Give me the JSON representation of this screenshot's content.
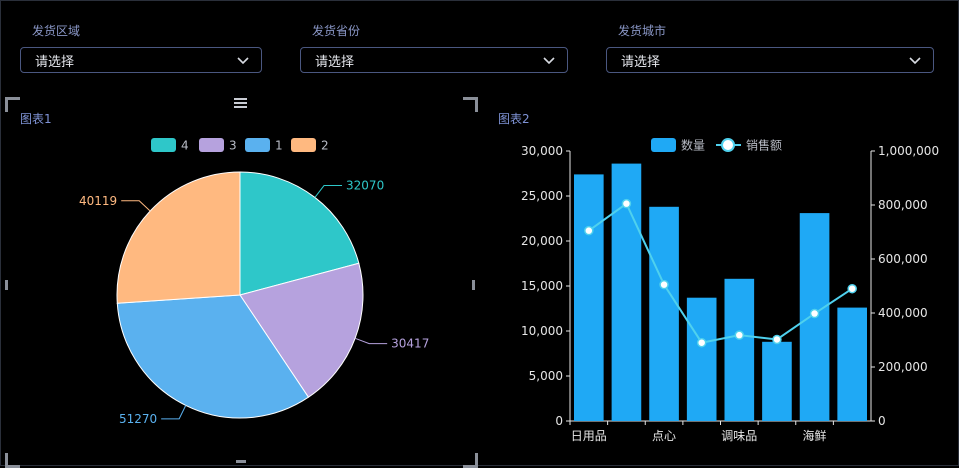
{
  "filters": [
    {
      "label": "发货区域",
      "value": "请选择"
    },
    {
      "label": "发货省份",
      "value": "请选择"
    },
    {
      "label": "发货城市",
      "value": "请选择"
    }
  ],
  "icons": {
    "dropdown": "chevron-down-icon",
    "menu": "menu-icon"
  },
  "chart1": {
    "title": "图表1"
  },
  "chart2": {
    "title": "图表2"
  },
  "chart_data": [
    {
      "type": "pie",
      "legend_position": "top",
      "labels": [
        "4",
        "3",
        "1",
        "2"
      ],
      "values": [
        32070,
        30417,
        51270,
        40119
      ],
      "colors": [
        "#2ec7c9",
        "#b6a2de",
        "#5ab1ef",
        "#ffb980"
      ]
    },
    {
      "type": "bar",
      "legend_position": "top",
      "categories": [
        "日用品",
        "",
        "点心",
        "",
        "调味品",
        "",
        "海鲜",
        ""
      ],
      "series": [
        {
          "name": "数量",
          "type": "bar",
          "axis": "left",
          "color": "#1fa9f5",
          "values": [
            27400,
            28600,
            23800,
            13700,
            15800,
            8800,
            23100,
            12600
          ]
        },
        {
          "name": "销售额",
          "type": "line",
          "axis": "right",
          "color": "#4fd1ee",
          "values": [
            705000,
            805000,
            505000,
            290000,
            318000,
            302000,
            398000,
            490000
          ]
        }
      ],
      "y_left": {
        "min": 0,
        "max": 30000,
        "ticks": [
          "0",
          "5,000",
          "10,000",
          "15,000",
          "20,000",
          "25,000",
          "30,000"
        ]
      },
      "y_right": {
        "min": 0,
        "max": 1000000,
        "ticks": [
          "0",
          "200,000",
          "400,000",
          "600,000",
          "800,000",
          "1,000,000"
        ]
      },
      "grid": false
    }
  ]
}
